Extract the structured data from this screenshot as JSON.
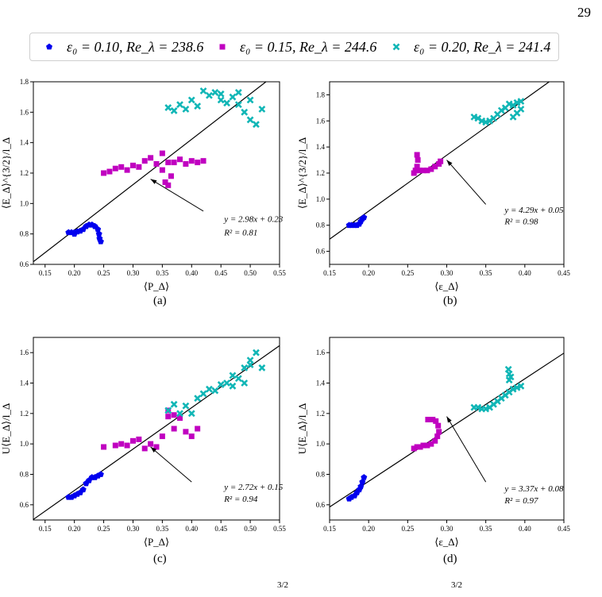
{
  "page_number": "29",
  "legend": [
    {
      "marker": "pentagon",
      "color": "#0000ee",
      "label": "ε₀ = 0.10, Re_λ = 238.6"
    },
    {
      "marker": "square",
      "color": "#c000c0",
      "label": "ε₀ = 0.15, Re_λ = 244.6"
    },
    {
      "marker": "x",
      "color": "#11b6b6",
      "label": "ε₀ = 0.20, Re_λ = 241.4"
    }
  ],
  "footer": {
    "frag_a": "3/2",
    "frag_b": "3/2"
  },
  "chart_data": [
    {
      "panel": "a",
      "caption": "(a)",
      "type": "scatter",
      "xlabel": "⟨P_Δ⟩",
      "ylabel": "⟨E_Δ⟩^{3/2}/l_Δ",
      "xlim": [
        0.13,
        0.55
      ],
      "ylim": [
        0.6,
        1.8
      ],
      "xticks": [
        "0.15",
        "0.20",
        "0.25",
        "0.30",
        "0.35",
        "0.40",
        "0.45",
        "0.50",
        "0.55"
      ],
      "yticks": [
        "0.6",
        "0.8",
        "1.0",
        "1.2",
        "1.4",
        "1.6",
        "1.8"
      ],
      "fit": {
        "slope": 2.98,
        "intercept": 0.23,
        "equation": "y = 2.98x + 0.23",
        "r2": "R² = 0.81"
      },
      "series": [
        {
          "name": "ε₀ = 0.10, Re_λ = 238.6",
          "marker": "pentagon",
          "color": "#0000ee",
          "points": [
            [
              0.19,
              0.81
            ],
            [
              0.195,
              0.81
            ],
            [
              0.2,
              0.81
            ],
            [
              0.205,
              0.815
            ],
            [
              0.21,
              0.82
            ],
            [
              0.215,
              0.83
            ],
            [
              0.22,
              0.85
            ],
            [
              0.225,
              0.86
            ],
            [
              0.23,
              0.86
            ],
            [
              0.235,
              0.85
            ],
            [
              0.24,
              0.83
            ],
            [
              0.242,
              0.8
            ],
            [
              0.243,
              0.77
            ],
            [
              0.245,
              0.75
            ],
            [
              0.2,
              0.8
            ]
          ]
        },
        {
          "name": "ε₀ = 0.15, Re_λ = 244.6",
          "marker": "square",
          "color": "#c000c0",
          "points": [
            [
              0.25,
              1.2
            ],
            [
              0.26,
              1.21
            ],
            [
              0.27,
              1.23
            ],
            [
              0.28,
              1.24
            ],
            [
              0.29,
              1.22
            ],
            [
              0.3,
              1.25
            ],
            [
              0.31,
              1.24
            ],
            [
              0.32,
              1.28
            ],
            [
              0.33,
              1.3
            ],
            [
              0.34,
              1.26
            ],
            [
              0.35,
              1.22
            ],
            [
              0.355,
              1.14
            ],
            [
              0.36,
              1.12
            ],
            [
              0.365,
              1.18
            ],
            [
              0.37,
              1.27
            ],
            [
              0.38,
              1.29
            ],
            [
              0.39,
              1.26
            ],
            [
              0.4,
              1.28
            ],
            [
              0.41,
              1.27
            ],
            [
              0.42,
              1.28
            ],
            [
              0.35,
              1.33
            ],
            [
              0.36,
              1.27
            ]
          ]
        },
        {
          "name": "ε₀ = 0.20, Re_λ = 241.4",
          "marker": "x",
          "color": "#11b6b6",
          "points": [
            [
              0.36,
              1.63
            ],
            [
              0.37,
              1.61
            ],
            [
              0.38,
              1.65
            ],
            [
              0.39,
              1.62
            ],
            [
              0.4,
              1.68
            ],
            [
              0.41,
              1.64
            ],
            [
              0.42,
              1.74
            ],
            [
              0.43,
              1.71
            ],
            [
              0.44,
              1.73
            ],
            [
              0.45,
              1.68
            ],
            [
              0.46,
              1.66
            ],
            [
              0.47,
              1.7
            ],
            [
              0.48,
              1.65
            ],
            [
              0.49,
              1.6
            ],
            [
              0.5,
              1.55
            ],
            [
              0.51,
              1.52
            ],
            [
              0.52,
              1.62
            ],
            [
              0.48,
              1.73
            ],
            [
              0.5,
              1.68
            ],
            [
              0.45,
              1.72
            ]
          ]
        }
      ]
    },
    {
      "panel": "b",
      "caption": "(b)",
      "type": "scatter",
      "xlabel": "⟨ε_Δ⟩",
      "ylabel": "⟨E_Δ⟩^{3/2}/l_Δ",
      "xlim": [
        0.15,
        0.45
      ],
      "ylim": [
        0.5,
        1.9
      ],
      "xticks": [
        "0.15",
        "0.20",
        "0.25",
        "0.30",
        "0.35",
        "0.40",
        "0.45"
      ],
      "yticks": [
        "0.6",
        "0.8",
        "1.0",
        "1.2",
        "1.4",
        "1.6",
        "1.8"
      ],
      "fit": {
        "slope": 4.29,
        "intercept": 0.05,
        "equation": "y = 4.29x + 0.05",
        "r2": "R² = 0.98"
      },
      "series": [
        {
          "name": "ε₀ = 0.10, Re_λ = 238.6",
          "marker": "pentagon",
          "color": "#0000ee",
          "points": [
            [
              0.175,
              0.8
            ],
            [
              0.178,
              0.8
            ],
            [
              0.182,
              0.8
            ],
            [
              0.185,
              0.8
            ],
            [
              0.188,
              0.81
            ],
            [
              0.19,
              0.83
            ],
            [
              0.192,
              0.85
            ],
            [
              0.194,
              0.86
            ]
          ]
        },
        {
          "name": "ε₀ = 0.15, Re_λ = 244.6",
          "marker": "square",
          "color": "#c000c0",
          "points": [
            [
              0.258,
              1.2
            ],
            [
              0.26,
              1.22
            ],
            [
              0.262,
              1.25
            ],
            [
              0.263,
              1.3
            ],
            [
              0.262,
              1.34
            ],
            [
              0.265,
              1.22
            ],
            [
              0.27,
              1.22
            ],
            [
              0.275,
              1.22
            ],
            [
              0.28,
              1.23
            ],
            [
              0.285,
              1.25
            ],
            [
              0.29,
              1.27
            ],
            [
              0.292,
              1.29
            ]
          ]
        },
        {
          "name": "ε₀ = 0.20, Re_λ = 241.4",
          "marker": "x",
          "color": "#11b6b6",
          "points": [
            [
              0.335,
              1.63
            ],
            [
              0.34,
              1.62
            ],
            [
              0.345,
              1.6
            ],
            [
              0.35,
              1.59
            ],
            [
              0.355,
              1.6
            ],
            [
              0.36,
              1.62
            ],
            [
              0.365,
              1.65
            ],
            [
              0.37,
              1.68
            ],
            [
              0.375,
              1.7
            ],
            [
              0.38,
              1.73
            ],
            [
              0.385,
              1.72
            ],
            [
              0.39,
              1.74
            ],
            [
              0.395,
              1.75
            ],
            [
              0.385,
              1.63
            ],
            [
              0.39,
              1.66
            ],
            [
              0.395,
              1.69
            ]
          ]
        }
      ]
    },
    {
      "panel": "c",
      "caption": "(c)",
      "type": "scatter",
      "xlabel": "⟨P_Δ⟩",
      "ylabel": "U⟨E_Δ⟩/l_Δ",
      "xlim": [
        0.13,
        0.55
      ],
      "ylim": [
        0.5,
        1.7
      ],
      "xticks": [
        "0.15",
        "0.20",
        "0.25",
        "0.30",
        "0.35",
        "0.40",
        "0.45",
        "0.50",
        "0.55"
      ],
      "yticks": [
        "0.6",
        "0.8",
        "1.0",
        "1.2",
        "1.4",
        "1.6"
      ],
      "fit": {
        "slope": 2.72,
        "intercept": 0.15,
        "equation": "y = 2.72x + 0.15",
        "r2": "R² = 0.94"
      },
      "series": [
        {
          "name": "ε₀ = 0.10, Re_λ = 238.6",
          "marker": "pentagon",
          "color": "#0000ee",
          "points": [
            [
              0.19,
              0.65
            ],
            [
              0.195,
              0.65
            ],
            [
              0.2,
              0.66
            ],
            [
              0.205,
              0.67
            ],
            [
              0.21,
              0.68
            ],
            [
              0.215,
              0.7
            ],
            [
              0.22,
              0.74
            ],
            [
              0.225,
              0.76
            ],
            [
              0.23,
              0.78
            ],
            [
              0.235,
              0.78
            ],
            [
              0.24,
              0.79
            ],
            [
              0.245,
              0.8
            ]
          ]
        },
        {
          "name": "ε₀ = 0.15, Re_λ = 244.6",
          "marker": "square",
          "color": "#c000c0",
          "points": [
            [
              0.25,
              0.98
            ],
            [
              0.27,
              0.99
            ],
            [
              0.28,
              1.0
            ],
            [
              0.29,
              0.99
            ],
            [
              0.3,
              1.02
            ],
            [
              0.31,
              1.03
            ],
            [
              0.32,
              0.97
            ],
            [
              0.33,
              1.0
            ],
            [
              0.34,
              0.98
            ],
            [
              0.35,
              1.05
            ],
            [
              0.36,
              1.22
            ],
            [
              0.37,
              1.1
            ],
            [
              0.38,
              1.17
            ],
            [
              0.39,
              1.08
            ],
            [
              0.4,
              1.05
            ],
            [
              0.41,
              1.1
            ],
            [
              0.36,
              1.18
            ],
            [
              0.37,
              1.19
            ]
          ]
        },
        {
          "name": "ε₀ = 0.20, Re_λ = 241.4",
          "marker": "x",
          "color": "#11b6b6",
          "points": [
            [
              0.36,
              1.22
            ],
            [
              0.37,
              1.26
            ],
            [
              0.38,
              1.2
            ],
            [
              0.39,
              1.25
            ],
            [
              0.4,
              1.2
            ],
            [
              0.41,
              1.3
            ],
            [
              0.42,
              1.33
            ],
            [
              0.43,
              1.36
            ],
            [
              0.44,
              1.35
            ],
            [
              0.45,
              1.39
            ],
            [
              0.46,
              1.4
            ],
            [
              0.47,
              1.45
            ],
            [
              0.48,
              1.43
            ],
            [
              0.49,
              1.5
            ],
            [
              0.5,
              1.55
            ],
            [
              0.51,
              1.6
            ],
            [
              0.52,
              1.5
            ],
            [
              0.5,
              1.52
            ],
            [
              0.47,
              1.38
            ],
            [
              0.49,
              1.4
            ]
          ]
        }
      ]
    },
    {
      "panel": "d",
      "caption": "(d)",
      "type": "scatter",
      "xlabel": "⟨ε_Δ⟩",
      "ylabel": "U⟨E_Δ⟩/l_Δ",
      "xlim": [
        0.15,
        0.45
      ],
      "ylim": [
        0.5,
        1.7
      ],
      "xticks": [
        "0.15",
        "0.20",
        "0.25",
        "0.30",
        "0.35",
        "0.40",
        "0.45"
      ],
      "yticks": [
        "0.6",
        "0.8",
        "1.0",
        "1.2",
        "1.4",
        "1.6"
      ],
      "fit": {
        "slope": 3.37,
        "intercept": 0.08,
        "equation": "y = 3.37x + 0.08",
        "r2": "R² = 0.97"
      },
      "series": [
        {
          "name": "ε₀ = 0.10, Re_λ = 238.6",
          "marker": "pentagon",
          "color": "#0000ee",
          "points": [
            [
              0.175,
              0.64
            ],
            [
              0.178,
              0.65
            ],
            [
              0.182,
              0.66
            ],
            [
              0.185,
              0.68
            ],
            [
              0.188,
              0.7
            ],
            [
              0.19,
              0.72
            ],
            [
              0.192,
              0.75
            ],
            [
              0.194,
              0.78
            ]
          ]
        },
        {
          "name": "ε₀ = 0.15, Re_λ = 244.6",
          "marker": "square",
          "color": "#c000c0",
          "points": [
            [
              0.258,
              0.97
            ],
            [
              0.262,
              0.98
            ],
            [
              0.266,
              0.98
            ],
            [
              0.27,
              0.99
            ],
            [
              0.275,
              0.99
            ],
            [
              0.28,
              1.0
            ],
            [
              0.285,
              1.02
            ],
            [
              0.288,
              1.05
            ],
            [
              0.29,
              1.08
            ],
            [
              0.289,
              1.12
            ],
            [
              0.286,
              1.15
            ],
            [
              0.282,
              1.16
            ],
            [
              0.276,
              1.16
            ]
          ]
        },
        {
          "name": "ε₀ = 0.20, Re_λ = 241.4",
          "marker": "x",
          "color": "#11b6b6",
          "points": [
            [
              0.335,
              1.24
            ],
            [
              0.34,
              1.24
            ],
            [
              0.345,
              1.23
            ],
            [
              0.35,
              1.23
            ],
            [
              0.355,
              1.24
            ],
            [
              0.36,
              1.26
            ],
            [
              0.365,
              1.28
            ],
            [
              0.37,
              1.3
            ],
            [
              0.375,
              1.32
            ],
            [
              0.38,
              1.34
            ],
            [
              0.385,
              1.36
            ],
            [
              0.39,
              1.37
            ],
            [
              0.395,
              1.38
            ],
            [
              0.38,
              1.42
            ],
            [
              0.38,
              1.46
            ],
            [
              0.379,
              1.49
            ],
            [
              0.382,
              1.44
            ]
          ]
        }
      ]
    }
  ]
}
